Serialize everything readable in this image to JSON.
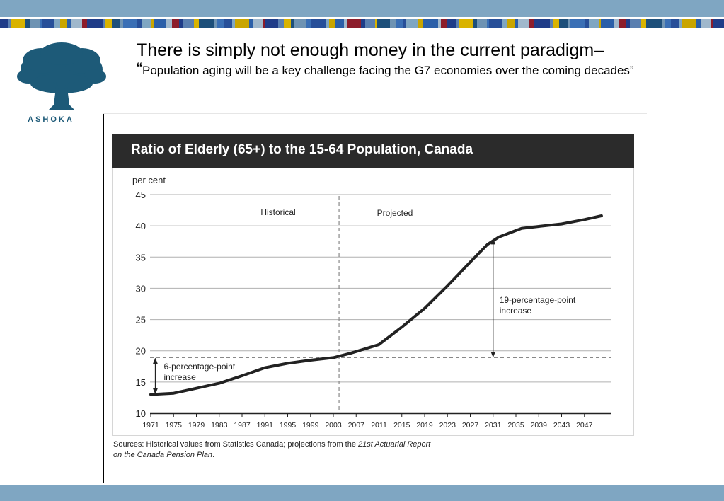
{
  "slide": {
    "heading_line1": "There is simply not enough money in the current paradigm–",
    "quote_open": "“",
    "heading_line2": "Population aging will be a key challenge facing the G7 economies over the coming decades”",
    "logo_text": "ASHOKA",
    "logo_icon": "tree-icon",
    "colors": {
      "bar": "#7fa6c2",
      "logo": "#1d5a78",
      "title_bar": "#2b2b2b"
    }
  },
  "chart_data": {
    "type": "line",
    "title": "Ratio of Elderly (65+) to the 15-64 Population, Canada",
    "ylabel": "per cent",
    "ylim": [
      10,
      45
    ],
    "yticks": [
      10,
      15,
      20,
      25,
      30,
      35,
      40,
      45
    ],
    "xlim": [
      1971,
      2051
    ],
    "xticks": [
      "1971",
      "1975",
      "1979",
      "1983",
      "1987",
      "1991",
      "1995",
      "1999",
      "2003",
      "2007",
      "2011",
      "2015",
      "2019",
      "2023",
      "2027",
      "2031",
      "2035",
      "2039",
      "2043",
      "2047"
    ],
    "grid": true,
    "divider_year": 2004,
    "region_labels": {
      "historical": "Historical",
      "projected": "Projected"
    },
    "series": [
      {
        "x": [
          1971,
          1975,
          1979,
          1983,
          1987,
          1991,
          1995,
          1999,
          2003,
          2006,
          2011,
          2015,
          2019,
          2023,
          2027,
          2030,
          2032,
          2036,
          2039,
          2043,
          2047,
          2050
        ],
        "y": [
          13.0,
          13.2,
          14.0,
          14.8,
          16.0,
          17.3,
          18.0,
          18.5,
          18.9,
          19.6,
          21.0,
          23.8,
          26.8,
          30.4,
          34.2,
          37.0,
          38.2,
          39.6,
          39.9,
          40.3,
          41.0,
          41.6
        ]
      }
    ],
    "reference_level": 18.9,
    "annotations": [
      {
        "text_line1": "6-percentage-point",
        "text_line2": "increase",
        "from": 13.0,
        "to": 18.9,
        "year": 1971.8
      },
      {
        "text_line1": "19-percentage-point",
        "text_line2": "increase",
        "from": 18.9,
        "to": 38.0,
        "year": 2031
      }
    ]
  },
  "sources": {
    "prefix": "Sources: Historical values from Statistics Canada; projections from the ",
    "italic1": "21st Actuarial Report",
    "italic2": "on the Canada Pension Plan",
    "suffix": "."
  }
}
